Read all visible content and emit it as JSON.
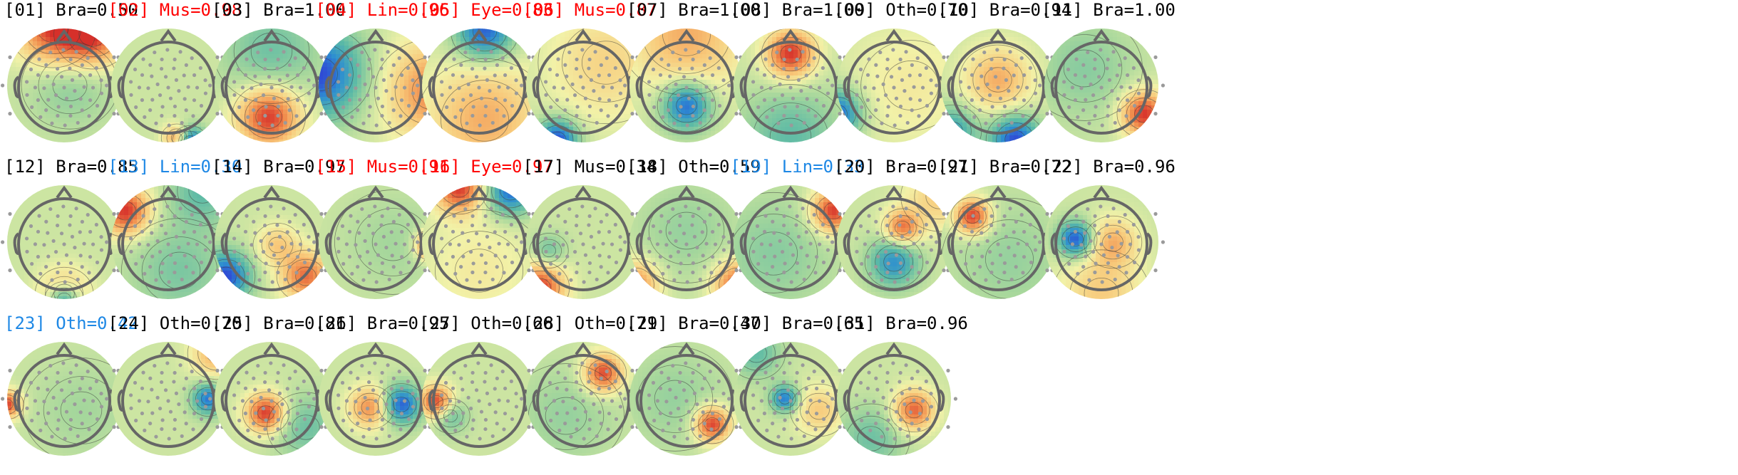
{
  "colors": {
    "title_default": "#000000",
    "title_artifact": "#ff0000",
    "title_low": "#1e88e5",
    "head_outline": "#666666",
    "electrode": "#9a9a9a",
    "contour": "#3a3a3a",
    "colormap": [
      "#2f3bd6",
      "#2e8fd0",
      "#5ab9a6",
      "#a6d79c",
      "#f2f2a8",
      "#f8c97a",
      "#f08a4b",
      "#d6302a"
    ]
  },
  "components": [
    {
      "id": "[01]",
      "label": "Bra=0.50",
      "label_class": "Bra",
      "score": 0.5,
      "title_color": "default",
      "pattern": "frontal-rim-positive"
    },
    {
      "id": "[02]",
      "label": "Mus=0.98",
      "label_class": "Mus",
      "score": 0.98,
      "title_color": "artifact",
      "pattern": "posterior-dipole"
    },
    {
      "id": "[03]",
      "label": "Bra=1.00",
      "label_class": "Bra",
      "score": 1.0,
      "title_color": "default",
      "pattern": "posterior-positive"
    },
    {
      "id": "[04]",
      "label": "Lin=0.96",
      "label_class": "Lin",
      "score": 0.96,
      "title_color": "artifact",
      "pattern": "left-right-gradient"
    },
    {
      "id": "[05]",
      "label": "Eye=0.83",
      "label_class": "Eye",
      "score": 0.83,
      "title_color": "artifact",
      "pattern": "frontal-negative"
    },
    {
      "id": "[06]",
      "label": "Mus=0.87",
      "label_class": "Mus",
      "score": 0.87,
      "title_color": "artifact",
      "pattern": "left-posterior-negative"
    },
    {
      "id": "[07]",
      "label": "Bra=1.00",
      "label_class": "Bra",
      "score": 1.0,
      "title_color": "default",
      "pattern": "central-posterior-negative"
    },
    {
      "id": "[08]",
      "label": "Bra=1.00",
      "label_class": "Bra",
      "score": 1.0,
      "title_color": "default",
      "pattern": "frontal-central-positive"
    },
    {
      "id": "[09]",
      "label": "Oth=0.70",
      "label_class": "Oth",
      "score": 0.7,
      "title_color": "default",
      "pattern": "left-rim-negative"
    },
    {
      "id": "[10]",
      "label": "Bra=0.94",
      "label_class": "Bra",
      "score": 0.94,
      "title_color": "default",
      "pattern": "central-positive-posterior-negative"
    },
    {
      "id": "[11]",
      "label": "Bra=1.00",
      "label_class": "Bra",
      "score": 1.0,
      "title_color": "default",
      "pattern": "right-posterior-positive"
    },
    {
      "id": "[12]",
      "label": "Bra=0.85",
      "label_class": "Bra",
      "score": 0.85,
      "title_color": "default",
      "pattern": "inion-dipole"
    },
    {
      "id": "[13]",
      "label": "Lin=0.30",
      "label_class": "Lin",
      "score": 0.3,
      "title_color": "low",
      "pattern": "left-frontal-positive"
    },
    {
      "id": "[14]",
      "label": "Bra=0.97",
      "label_class": "Bra",
      "score": 0.97,
      "title_color": "default",
      "pattern": "left-negative-right-positive"
    },
    {
      "id": "[15]",
      "label": "Mus=0.91",
      "label_class": "Mus",
      "score": 0.91,
      "title_color": "artifact",
      "pattern": "right-temporal-focal"
    },
    {
      "id": "[16]",
      "label": "Eye=0.97",
      "label_class": "Eye",
      "score": 0.97,
      "title_color": "artifact",
      "pattern": "frontal-dipole"
    },
    {
      "id": "[17]",
      "label": "Mus=0.34",
      "label_class": "Mus",
      "score": 0.34,
      "title_color": "default",
      "pattern": "left-posterior-positive"
    },
    {
      "id": "[18]",
      "label": "Oth=0.59",
      "label_class": "Oth",
      "score": 0.59,
      "title_color": "default",
      "pattern": "bilateral-posterior"
    },
    {
      "id": "[19]",
      "label": "Lin=0.33",
      "label_class": "Lin",
      "score": 0.33,
      "title_color": "low",
      "pattern": "right-frontal-positive"
    },
    {
      "id": "[20]",
      "label": "Bra=0.97",
      "label_class": "Bra",
      "score": 0.97,
      "title_color": "default",
      "pattern": "central-dipole"
    },
    {
      "id": "[21]",
      "label": "Bra=0.72",
      "label_class": "Bra",
      "score": 0.72,
      "title_color": "default",
      "pattern": "left-frontal-focal"
    },
    {
      "id": "[22]",
      "label": "Bra=0.96",
      "label_class": "Bra",
      "score": 0.96,
      "title_color": "default",
      "pattern": "left-central-negative"
    },
    {
      "id": "[23]",
      "label": "Oth=0.42",
      "label_class": "Oth",
      "score": 0.42,
      "title_color": "low",
      "pattern": "left-temporal-focal"
    },
    {
      "id": "[24]",
      "label": "Oth=0.70",
      "label_class": "Oth",
      "score": 0.7,
      "title_color": "default",
      "pattern": "right-temporal-negative"
    },
    {
      "id": "[25]",
      "label": "Bra=0.81",
      "label_class": "Bra",
      "score": 0.81,
      "title_color": "default",
      "pattern": "central-posterior-positive"
    },
    {
      "id": "[26]",
      "label": "Bra=0.95",
      "label_class": "Bra",
      "score": 0.95,
      "title_color": "default",
      "pattern": "central-dipole-horizontal"
    },
    {
      "id": "[27]",
      "label": "Oth=0.66",
      "label_class": "Oth",
      "score": 0.66,
      "title_color": "default",
      "pattern": "left-focal"
    },
    {
      "id": "[28]",
      "label": "Oth=0.71",
      "label_class": "Oth",
      "score": 0.71,
      "title_color": "default",
      "pattern": "right-frontal-focal"
    },
    {
      "id": "[29]",
      "label": "Bra=0.47",
      "label_class": "Bra",
      "score": 0.47,
      "title_color": "default",
      "pattern": "right-posterior-focal"
    },
    {
      "id": "[30]",
      "label": "Bra=0.65",
      "label_class": "Bra",
      "score": 0.65,
      "title_color": "default",
      "pattern": "left-central-negative-small"
    },
    {
      "id": "[31]",
      "label": "Bra=0.96",
      "label_class": "Bra",
      "score": 0.96,
      "title_color": "default",
      "pattern": "central-right-positive"
    }
  ]
}
